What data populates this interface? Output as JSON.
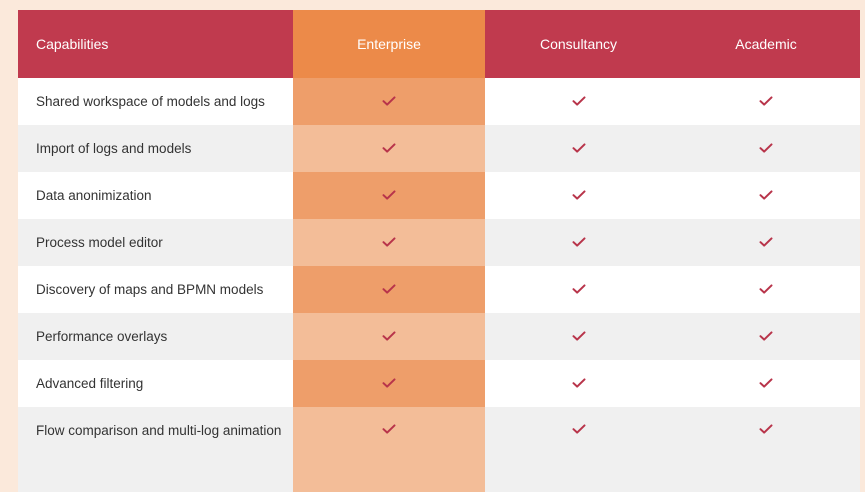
{
  "table": {
    "headers": [
      "Capabilities",
      "Enterprise",
      "Consultancy",
      "Academic"
    ],
    "rows": [
      {
        "capability": "Shared workspace of models and logs",
        "enterprise": true,
        "consultancy": true,
        "academic": true
      },
      {
        "capability": "Import of logs and models",
        "enterprise": true,
        "consultancy": true,
        "academic": true
      },
      {
        "capability": "Data anonimization",
        "enterprise": true,
        "consultancy": true,
        "academic": true
      },
      {
        "capability": "Process model editor",
        "enterprise": true,
        "consultancy": true,
        "academic": true
      },
      {
        "capability": "Discovery of maps and BPMN models",
        "enterprise": true,
        "consultancy": true,
        "academic": true
      },
      {
        "capability": "Performance overlays",
        "enterprise": true,
        "consultancy": true,
        "academic": true
      },
      {
        "capability": "Advanced filtering",
        "enterprise": true,
        "consultancy": true,
        "academic": true
      },
      {
        "capability": "Flow comparison and multi-log animation",
        "enterprise": true,
        "consultancy": true,
        "academic": true
      }
    ]
  },
  "icons": {
    "check": "check-icon"
  },
  "colors": {
    "header_bg": "#c03a4e",
    "enterprise_header_bg": "#ec8a49",
    "enterprise_cell_dark": "#ee9e6a",
    "enterprise_cell_light": "#f3bd98",
    "check_color": "#b8344a",
    "page_bg": "#fbe9db"
  }
}
